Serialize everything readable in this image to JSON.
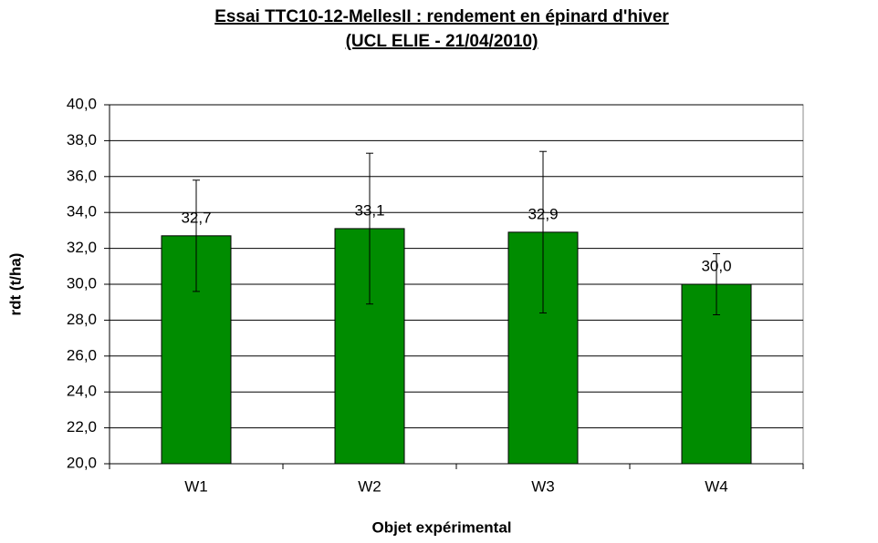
{
  "chart_data": {
    "type": "bar",
    "title": "Essai TTC10-12-MellesII : rendement en épinard d'hiver",
    "subtitle": "(UCL ELIE - 21/04/2010)",
    "x_label": "Objet expérimental",
    "y_label": "rdt (t/ha)",
    "categories": [
      "W1",
      "W2",
      "W3",
      "W4"
    ],
    "values": [
      32.7,
      33.1,
      32.9,
      30.0
    ],
    "value_labels": [
      "32,7",
      "33,1",
      "32,9",
      "30,0"
    ],
    "errors": [
      3.1,
      4.2,
      4.5,
      1.7
    ],
    "color": "#008c00",
    "ylim": [
      20,
      40
    ],
    "yticks": [
      {
        "value": 20,
        "label": "20,0"
      },
      {
        "value": 22,
        "label": "22,0"
      },
      {
        "value": 24,
        "label": "24,0"
      },
      {
        "value": 26,
        "label": "26,0"
      },
      {
        "value": 28,
        "label": "28,0"
      },
      {
        "value": 30,
        "label": "30,0"
      },
      {
        "value": 32,
        "label": "32,0"
      },
      {
        "value": 34,
        "label": "34,0"
      },
      {
        "value": 36,
        "label": "36,0"
      },
      {
        "value": 38,
        "label": "38,0"
      },
      {
        "value": 40,
        "label": "40,0"
      }
    ],
    "grid": true
  }
}
